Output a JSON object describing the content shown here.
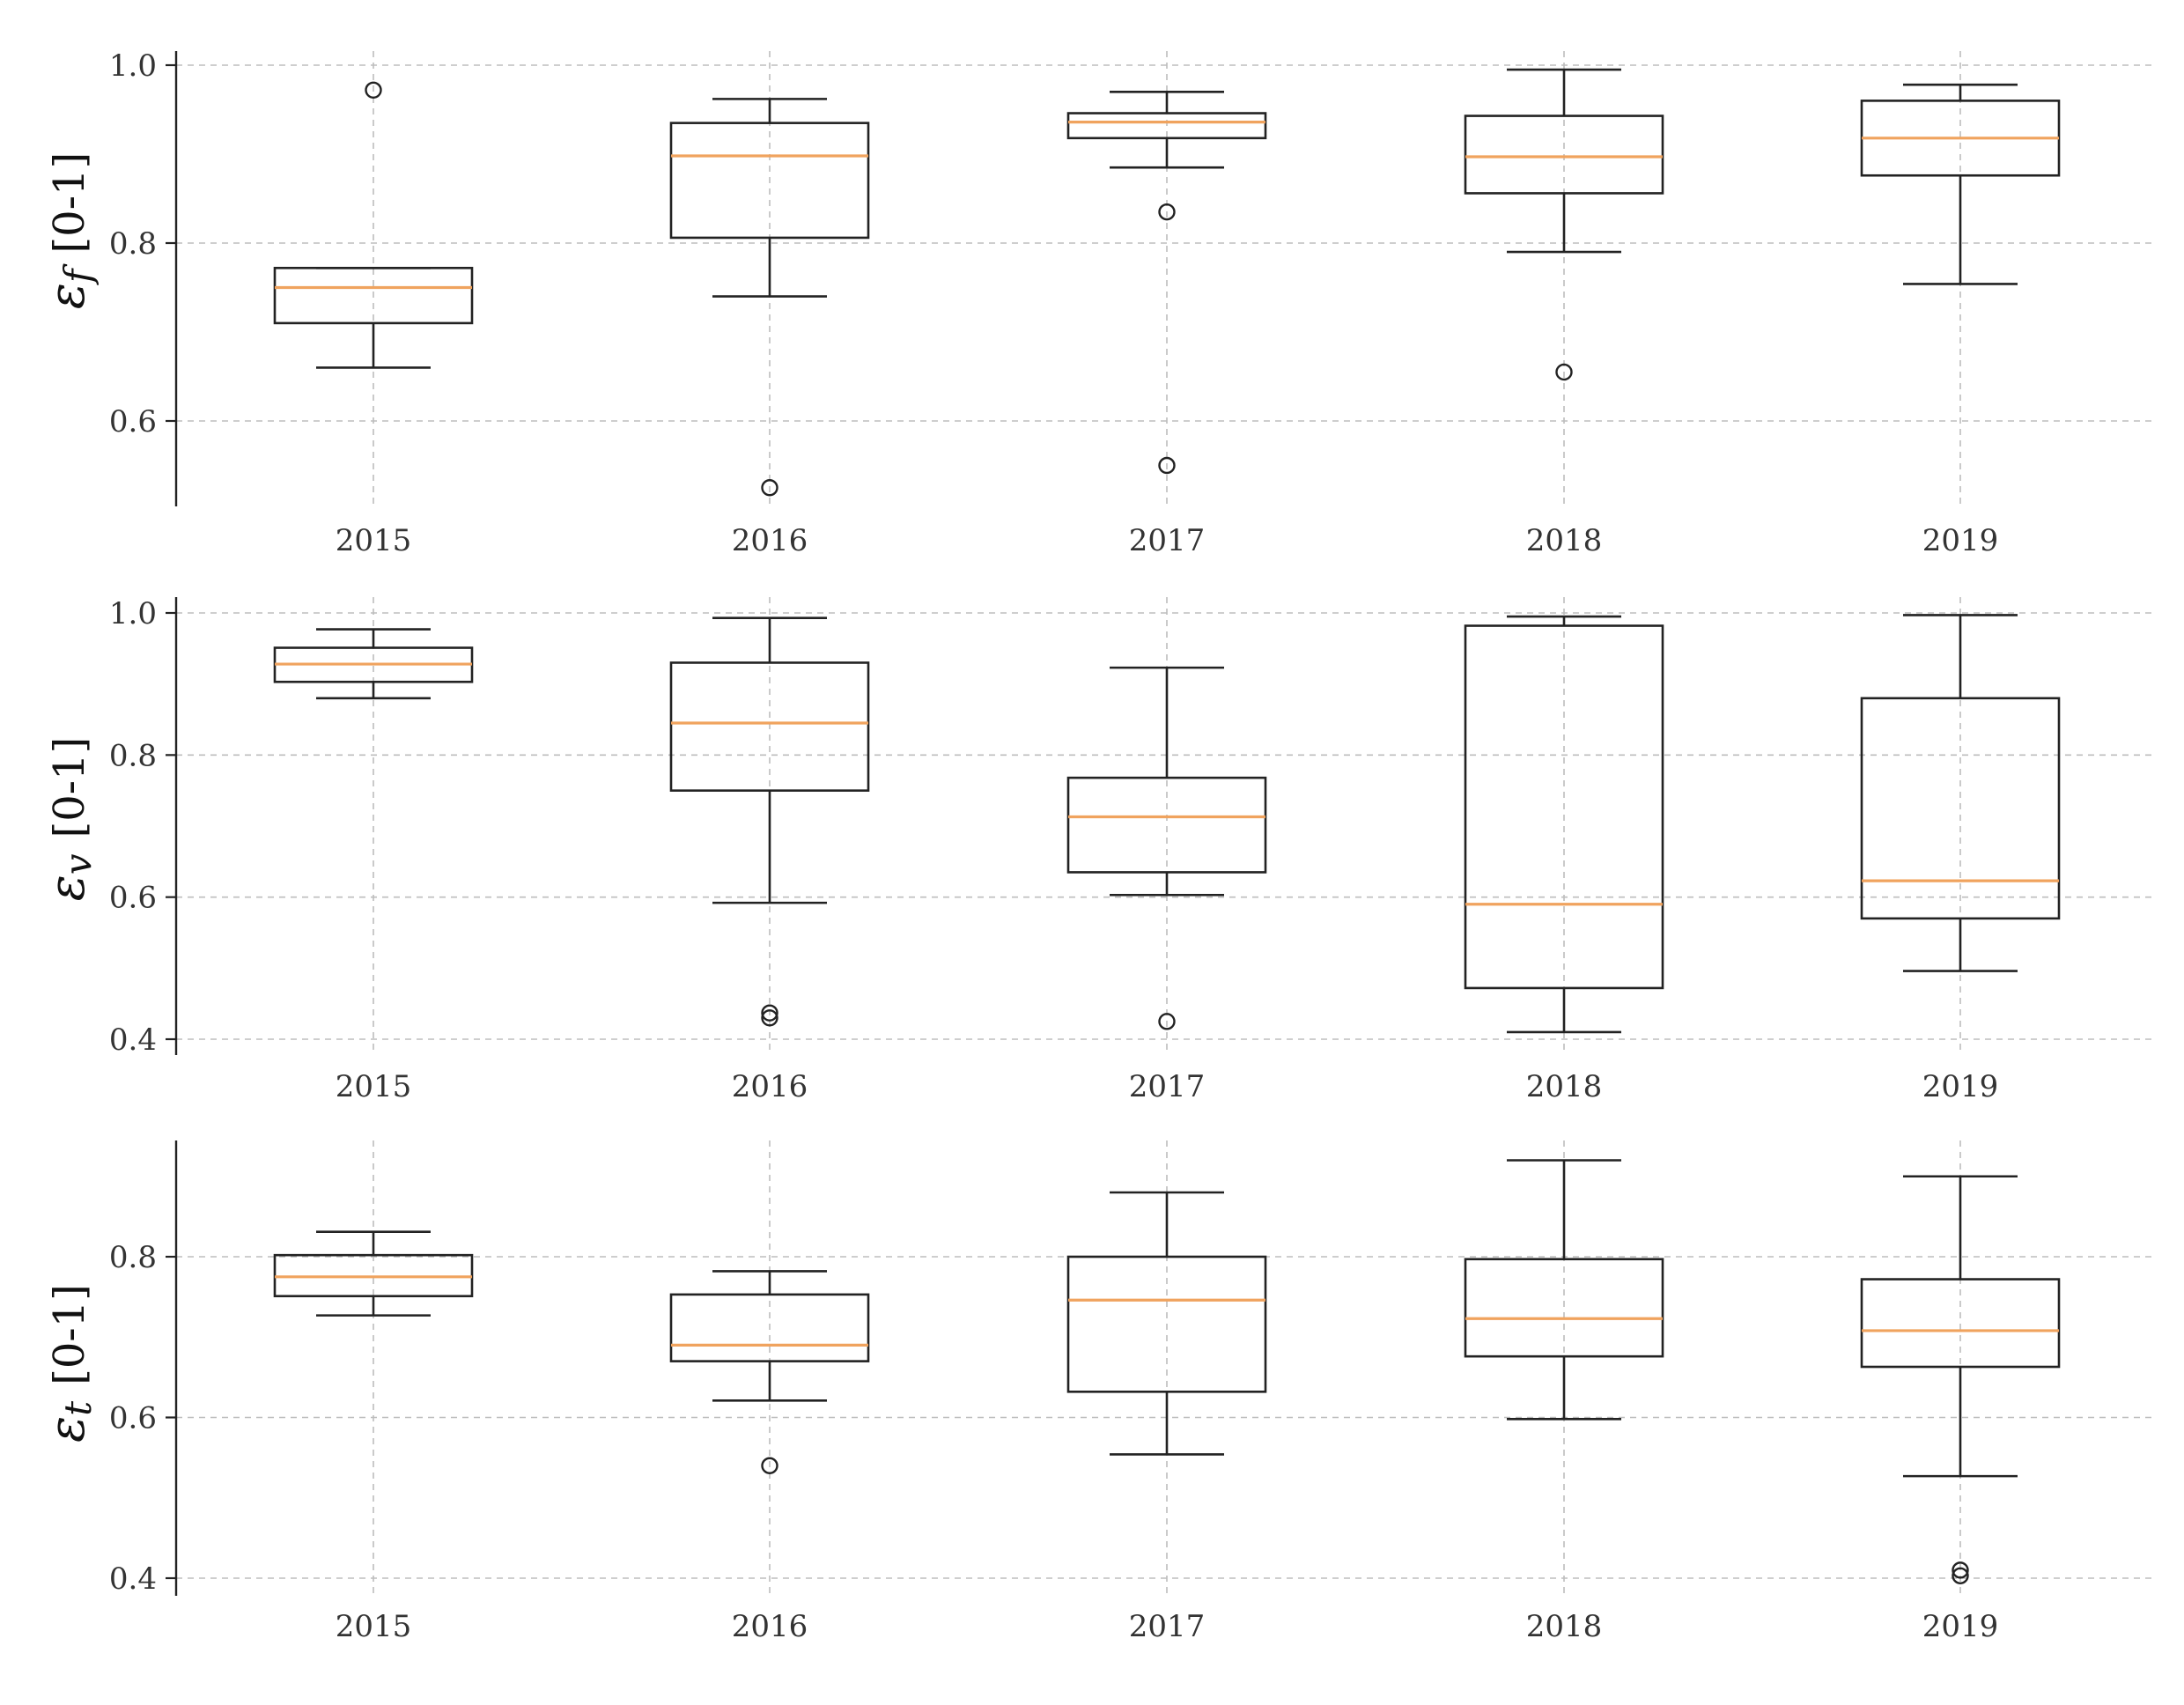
{
  "chart_data": [
    {
      "type": "box",
      "ylabel": {
        "symbol": "ε",
        "subscript": "f",
        "unit": "[0-1]"
      },
      "categories": [
        "2015",
        "2016",
        "2017",
        "2018",
        "2019"
      ],
      "yticks": [
        "0.6",
        "0.8",
        "1.0"
      ],
      "ylim": [
        0.5,
        1.0
      ],
      "grid": true,
      "boxes": [
        {
          "whislo": 0.66,
          "q1": 0.71,
          "med": 0.75,
          "q3": 0.772,
          "whishi": 0.772,
          "fliers": [
            0.972
          ]
        },
        {
          "whislo": 0.74,
          "q1": 0.806,
          "med": 0.898,
          "q3": 0.935,
          "whishi": 0.962,
          "fliers": [
            0.525
          ]
        },
        {
          "whislo": 0.885,
          "q1": 0.918,
          "med": 0.936,
          "q3": 0.946,
          "whishi": 0.97,
          "fliers": [
            0.835,
            0.55
          ]
        },
        {
          "whislo": 0.79,
          "q1": 0.856,
          "med": 0.897,
          "q3": 0.943,
          "whishi": 0.995,
          "fliers": [
            0.655
          ]
        },
        {
          "whislo": 0.754,
          "q1": 0.876,
          "med": 0.918,
          "q3": 0.96,
          "whishi": 0.978,
          "fliers": []
        }
      ]
    },
    {
      "type": "box",
      "ylabel": {
        "symbol": "ε",
        "subscript": "v",
        "unit": "[0-1]"
      },
      "categories": [
        "2015",
        "2016",
        "2017",
        "2018",
        "2019"
      ],
      "yticks": [
        "0.4",
        "0.6",
        "0.8",
        "1.0"
      ],
      "ylim": [
        0.4,
        1.0
      ],
      "grid": true,
      "boxes": [
        {
          "whislo": 0.88,
          "q1": 0.903,
          "med": 0.928,
          "q3": 0.951,
          "whishi": 0.977,
          "fliers": []
        },
        {
          "whislo": 0.592,
          "q1": 0.75,
          "med": 0.845,
          "q3": 0.93,
          "whishi": 0.993,
          "fliers": [
            0.437,
            0.43
          ]
        },
        {
          "whislo": 0.603,
          "q1": 0.635,
          "med": 0.713,
          "q3": 0.768,
          "whishi": 0.923,
          "fliers": [
            0.425
          ]
        },
        {
          "whislo": 0.41,
          "q1": 0.472,
          "med": 0.59,
          "q3": 0.982,
          "whishi": 0.995,
          "fliers": []
        },
        {
          "whislo": 0.496,
          "q1": 0.57,
          "med": 0.623,
          "q3": 0.88,
          "whishi": 0.997,
          "fliers": []
        }
      ]
    },
    {
      "type": "box",
      "ylabel": {
        "symbol": "ε",
        "subscript": "t",
        "unit": "[0-1]"
      },
      "categories": [
        "2015",
        "2016",
        "2017",
        "2018",
        "2019"
      ],
      "yticks": [
        "0.4",
        "0.6",
        "0.8"
      ],
      "ylim": [
        0.4,
        0.9
      ],
      "grid": true,
      "boxes": [
        {
          "whislo": 0.727,
          "q1": 0.751,
          "med": 0.775,
          "q3": 0.802,
          "whishi": 0.831,
          "fliers": []
        },
        {
          "whislo": 0.621,
          "q1": 0.67,
          "med": 0.69,
          "q3": 0.753,
          "whishi": 0.782,
          "fliers": [
            0.54
          ]
        },
        {
          "whislo": 0.554,
          "q1": 0.632,
          "med": 0.746,
          "q3": 0.8,
          "whishi": 0.88,
          "fliers": []
        },
        {
          "whislo": 0.598,
          "q1": 0.676,
          "med": 0.723,
          "q3": 0.797,
          "whishi": 0.92,
          "fliers": []
        },
        {
          "whislo": 0.527,
          "q1": 0.663,
          "med": 0.708,
          "q3": 0.772,
          "whishi": 0.9,
          "fliers": [
            0.41,
            0.403
          ]
        }
      ]
    }
  ]
}
